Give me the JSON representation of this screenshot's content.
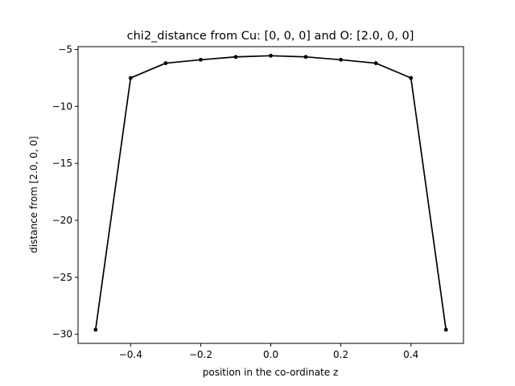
{
  "chart_data": {
    "type": "line",
    "title": "chi2_distance from Cu: [0, 0, 0] and O: [2.0, 0, 0]",
    "xlabel": "position in the co-ordinate z",
    "ylabel": "distance from [2.0, 0, 0]",
    "xlim": [
      -0.55,
      0.55
    ],
    "ylim": [
      -30.8,
      -4.75
    ],
    "xticks": [
      -0.4,
      -0.2,
      0.0,
      0.2,
      0.4
    ],
    "xtick_labels": [
      "−0.4",
      "−0.2",
      "0.0",
      "0.2",
      "0.4"
    ],
    "yticks": [
      -5,
      -10,
      -15,
      -20,
      -25,
      -30
    ],
    "ytick_labels": [
      "−5",
      "−10",
      "−15",
      "−20",
      "−25",
      "−30"
    ],
    "grid": false,
    "line_color": "#000000",
    "marker": "dot",
    "series": [
      {
        "x": [
          -0.5,
          -0.4,
          -0.3,
          -0.2,
          -0.1,
          0.0,
          0.1,
          0.2,
          0.3,
          0.4,
          0.5
        ],
        "y": [
          -29.6,
          -7.5,
          -6.2,
          -5.9,
          -5.65,
          -5.55,
          -5.65,
          -5.9,
          -6.2,
          -7.5,
          -29.6
        ]
      }
    ]
  }
}
